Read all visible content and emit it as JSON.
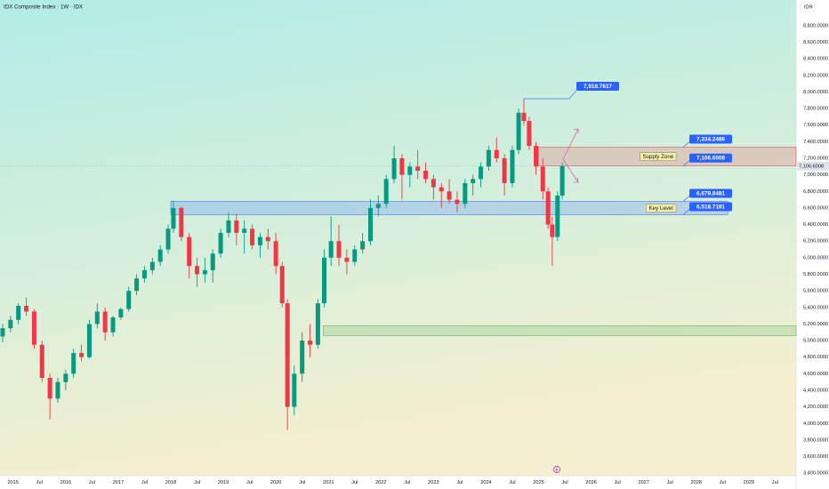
{
  "chart_data": {
    "type": "candlestick",
    "title": "IDX Composite Index · 1W · IDX",
    "currency": "IDR",
    "up_color": "#089981",
    "down_color": "#f23645",
    "xlim": [
      2014.75,
      2029.9
    ],
    "ylim": [
      3370,
      9110
    ],
    "grid": false,
    "xticks": [
      {
        "value": 2015,
        "label": "2015"
      },
      {
        "value": 2015.5,
        "label": "Jul"
      },
      {
        "value": 2016,
        "label": "2016"
      },
      {
        "value": 2016.5,
        "label": "Jul"
      },
      {
        "value": 2017,
        "label": "2017"
      },
      {
        "value": 2017.5,
        "label": "Jul"
      },
      {
        "value": 2018,
        "label": "2018"
      },
      {
        "value": 2018.5,
        "label": "Jul"
      },
      {
        "value": 2019,
        "label": "2019"
      },
      {
        "value": 2019.5,
        "label": "Jul"
      },
      {
        "value": 2020,
        "label": "2020"
      },
      {
        "value": 2020.5,
        "label": "Jul"
      },
      {
        "value": 2021,
        "label": "2021"
      },
      {
        "value": 2021.5,
        "label": "Jul"
      },
      {
        "value": 2022,
        "label": "2022"
      },
      {
        "value": 2022.5,
        "label": "Jul"
      },
      {
        "value": 2023,
        "label": "2023"
      },
      {
        "value": 2023.5,
        "label": "Jul"
      },
      {
        "value": 2024,
        "label": "2024"
      },
      {
        "value": 2024.5,
        "label": "Jul"
      },
      {
        "value": 2025,
        "label": "2025"
      },
      {
        "value": 2025.5,
        "label": "Jul"
      },
      {
        "value": 2026,
        "label": "2026"
      },
      {
        "value": 2026.5,
        "label": "Jul"
      },
      {
        "value": 2027,
        "label": "2027"
      },
      {
        "value": 2027.5,
        "label": "Jul"
      },
      {
        "value": 2028,
        "label": "2028"
      },
      {
        "value": 2028.5,
        "label": "Jul"
      },
      {
        "value": 2029,
        "label": "2029"
      },
      {
        "value": 2029.5,
        "label": "Jul"
      }
    ],
    "yticks": [
      {
        "value": 3400,
        "label": "3,400.0000"
      },
      {
        "value": 3600,
        "label": "3,600.0000"
      },
      {
        "value": 3800,
        "label": "3,800.0000"
      },
      {
        "value": 4000,
        "label": "4,000.0000"
      },
      {
        "value": 4200,
        "label": "4,200.0000"
      },
      {
        "value": 4400,
        "label": "4,400.0000"
      },
      {
        "value": 4600,
        "label": "4,600.0000"
      },
      {
        "value": 4800,
        "label": "4,800.0000"
      },
      {
        "value": 5000,
        "label": "5,000.0000"
      },
      {
        "value": 5200,
        "label": "5,200.0000"
      },
      {
        "value": 5400,
        "label": "5,400.0000"
      },
      {
        "value": 5600,
        "label": "5,600.0000"
      },
      {
        "value": 5800,
        "label": "5,800.0000"
      },
      {
        "value": 6000,
        "label": "6,000.0000"
      },
      {
        "value": 6200,
        "label": "6,200.0000"
      },
      {
        "value": 6400,
        "label": "6,400.0000"
      },
      {
        "value": 6600,
        "label": "6,600.0000"
      },
      {
        "value": 6800,
        "label": "6,800.0000"
      },
      {
        "value": 7000,
        "label": "7,000.0000"
      },
      {
        "value": 7200,
        "label": "7,200.0000"
      },
      {
        "value": 7400,
        "label": "7,400.0000"
      },
      {
        "value": 7600,
        "label": "7,600.0000"
      },
      {
        "value": 7800,
        "label": "7,800.0000"
      },
      {
        "value": 8000,
        "label": "8,000.0000"
      },
      {
        "value": 8200,
        "label": "8,200.0000"
      },
      {
        "value": 8400,
        "label": "8,400.0000"
      },
      {
        "value": 8600,
        "label": "8,600.0000"
      },
      {
        "value": 8800,
        "label": "8,800.0000"
      }
    ],
    "x": [
      2014.8,
      2014.95,
      2015.1,
      2015.25,
      2015.4,
      2015.55,
      2015.7,
      2015.85,
      2016.0,
      2016.15,
      2016.3,
      2016.45,
      2016.6,
      2016.75,
      2016.9,
      2017.05,
      2017.2,
      2017.35,
      2017.5,
      2017.65,
      2017.8,
      2017.95,
      2018.05,
      2018.2,
      2018.35,
      2018.5,
      2018.65,
      2018.8,
      2018.95,
      2019.1,
      2019.25,
      2019.4,
      2019.55,
      2019.7,
      2019.85,
      2020.0,
      2020.12,
      2020.22,
      2020.35,
      2020.5,
      2020.65,
      2020.8,
      2020.92,
      2021.05,
      2021.2,
      2021.35,
      2021.5,
      2021.65,
      2021.8,
      2021.95,
      2022.1,
      2022.25,
      2022.4,
      2022.55,
      2022.7,
      2022.85,
      2023.0,
      2023.15,
      2023.3,
      2023.45,
      2023.6,
      2023.75,
      2023.9,
      2024.05,
      2024.2,
      2024.35,
      2024.5,
      2024.62,
      2024.72,
      2024.82,
      2024.95,
      2025.08,
      2025.18,
      2025.26,
      2025.36,
      2025.45
    ],
    "open": [
      5050,
      5150,
      5250,
      5420,
      5350,
      4950,
      4550,
      4300,
      4500,
      4600,
      4850,
      4800,
      5200,
      5350,
      5100,
      5280,
      5380,
      5600,
      5750,
      5850,
      5950,
      6100,
      6350,
      6600,
      6250,
      5900,
      5800,
      5850,
      6050,
      6300,
      6450,
      6300,
      6350,
      6150,
      6250,
      6200,
      5900,
      5450,
      4200,
      4600,
      5000,
      4950,
      5450,
      6000,
      6200,
      6000,
      5950,
      6100,
      6200,
      6600,
      6650,
      6950,
      7200,
      7000,
      7100,
      7050,
      6950,
      6850,
      6800,
      6700,
      6650,
      6900,
      6950,
      7100,
      7300,
      7200,
      6900,
      7300,
      7750,
      7650,
      7350,
      7100,
      6800,
      6400,
      6250,
      6750
    ],
    "high": [
      5200,
      5300,
      5450,
      5520,
      5380,
      5000,
      4600,
      4550,
      4650,
      4900,
      4950,
      5250,
      5450,
      5400,
      5300,
      5400,
      5650,
      5800,
      5900,
      6000,
      6150,
      6400,
      6690,
      6620,
      6300,
      6000,
      6000,
      6100,
      6350,
      6550,
      6530,
      6450,
      6400,
      6300,
      6350,
      6300,
      5950,
      5500,
      4700,
      5100,
      5200,
      5500,
      6100,
      6500,
      6400,
      6100,
      6150,
      6300,
      6700,
      6750,
      7000,
      7350,
      7250,
      7150,
      7300,
      7150,
      7000,
      6900,
      6950,
      6800,
      6950,
      7000,
      7150,
      7350,
      7450,
      7250,
      7350,
      7800,
      7918.7617,
      7700,
      7400,
      7200,
      6850,
      6500,
      6800,
      7150
    ],
    "low": [
      4980,
      5100,
      5200,
      5300,
      4900,
      4500,
      4050,
      4250,
      4400,
      4550,
      4750,
      4780,
      5150,
      5000,
      5050,
      5250,
      5350,
      5550,
      5700,
      5800,
      5900,
      6050,
      6300,
      6200,
      5750,
      5650,
      5700,
      5700,
      6000,
      6250,
      6150,
      6050,
      6100,
      6000,
      6100,
      5800,
      5400,
      3920,
      4100,
      4500,
      4800,
      4900,
      5400,
      5900,
      5900,
      5800,
      5900,
      6050,
      6150,
      6500,
      6600,
      6900,
      6700,
      6850,
      6950,
      6900,
      6700,
      6600,
      6650,
      6550,
      6600,
      6750,
      6850,
      7050,
      7150,
      6750,
      6850,
      7250,
      7600,
      7300,
      7000,
      6700,
      6350,
      5900,
      6200,
      6700
    ],
    "close": [
      5150,
      5250,
      5420,
      5350,
      4950,
      4550,
      4300,
      4500,
      4600,
      4850,
      4800,
      5200,
      5350,
      5100,
      5280,
      5380,
      5600,
      5750,
      5850,
      5950,
      6100,
      6350,
      6600,
      6250,
      5900,
      5800,
      5850,
      6050,
      6300,
      6450,
      6300,
      6350,
      6150,
      6250,
      6200,
      5900,
      5450,
      4200,
      4600,
      5000,
      4950,
      5450,
      6000,
      6200,
      6000,
      5950,
      6100,
      6200,
      6600,
      6650,
      6950,
      7200,
      7000,
      7100,
      7050,
      6950,
      6850,
      6800,
      6700,
      6650,
      6900,
      6950,
      7100,
      7300,
      7200,
      6900,
      7300,
      7750,
      7650,
      7350,
      7100,
      6800,
      6400,
      6250,
      6750,
      7106.6008
    ],
    "last_price": {
      "value": 7106.6008,
      "label": "7,106.6008"
    },
    "peak": {
      "x": 2024.72,
      "value": 7918.7617,
      "label": "7,918.7617"
    },
    "zones": [
      {
        "name": "Supply Zone",
        "color": "#f23645",
        "x0": 2025.0,
        "x1": 2029.9,
        "low": {
          "value": 7106.6008,
          "label": "7,106.6008"
        },
        "high": {
          "value": 7334.2486,
          "label": "7,334.2486"
        }
      },
      {
        "name": "Key Level",
        "color": "#2962ff",
        "x0": 2018.0,
        "x1": 2028.6,
        "low": {
          "value": 6518.7181,
          "label": "6,518.7181"
        },
        "high": {
          "value": 6679.8481,
          "label": "6,679.8481"
        }
      },
      {
        "color": "#4caf50",
        "x0": 2020.9,
        "x1": 2029.9,
        "low": 5060,
        "high": 5180
      }
    ]
  }
}
